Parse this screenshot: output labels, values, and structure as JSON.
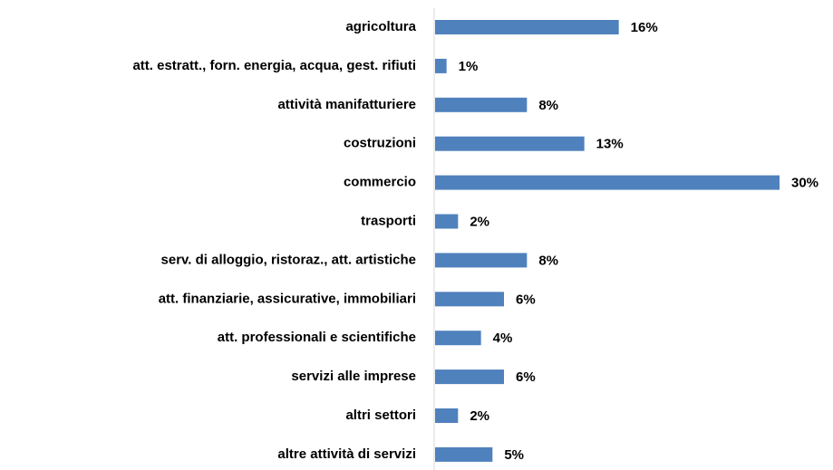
{
  "chart_data": {
    "type": "bar",
    "orientation": "horizontal",
    "categories": [
      "agricoltura",
      "att. estratt., forn. energia, acqua, gest. rifiuti",
      "attività manifatturiere",
      "costruzioni",
      "commercio",
      "trasporti",
      "serv. di alloggio, ristoraz., att. artistiche",
      "att. finanziarie, assicurative, immobiliari",
      "att. professionali e scientifiche",
      "servizi alle imprese",
      "altri settori",
      "altre attività di servizi"
    ],
    "values": [
      16,
      1,
      8,
      13,
      30,
      2,
      8,
      6,
      4,
      6,
      2,
      5
    ],
    "value_labels": [
      "16%",
      "1%",
      "8%",
      "13%",
      "30%",
      "2%",
      "8%",
      "6%",
      "4%",
      "6%",
      "2%",
      "5%"
    ],
    "color": "#4f81bd"
  }
}
